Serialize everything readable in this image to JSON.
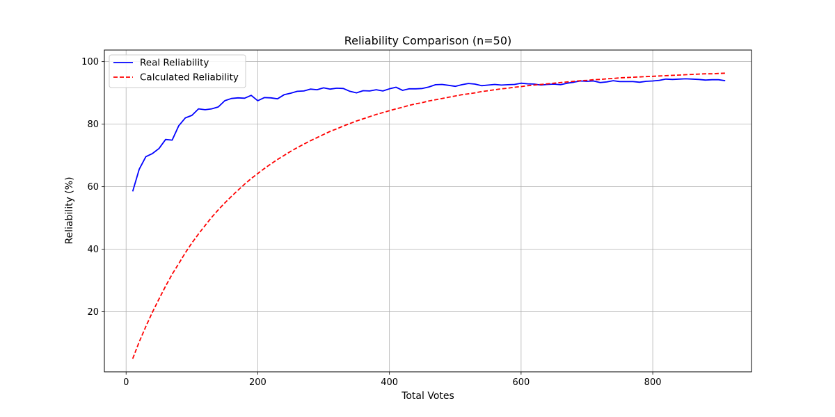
{
  "chart_data": {
    "type": "line",
    "title": "Reliability Comparison (n=50)",
    "xlabel": "Total Votes",
    "ylabel": "Reliability (%)",
    "xlim": [
      -33,
      950
    ],
    "ylim": [
      0.8,
      103.7
    ],
    "xticks": [
      0,
      200,
      400,
      600,
      800
    ],
    "yticks": [
      20,
      40,
      60,
      80,
      100
    ],
    "grid": true,
    "legend_position": "top-left",
    "x": [
      10,
      20,
      30,
      40,
      50,
      60,
      70,
      80,
      90,
      100,
      110,
      120,
      130,
      140,
      150,
      160,
      170,
      180,
      190,
      200,
      210,
      220,
      230,
      240,
      250,
      260,
      270,
      280,
      290,
      300,
      310,
      320,
      330,
      340,
      350,
      360,
      370,
      380,
      390,
      400,
      410,
      420,
      430,
      440,
      450,
      460,
      470,
      480,
      490,
      500,
      510,
      520,
      530,
      540,
      550,
      560,
      570,
      580,
      590,
      600,
      610,
      620,
      630,
      640,
      650,
      660,
      670,
      680,
      690,
      700,
      710,
      720,
      730,
      740,
      750,
      760,
      770,
      780,
      790,
      800,
      810,
      820,
      830,
      840,
      850,
      860,
      870,
      880,
      890,
      900,
      910
    ],
    "series": [
      {
        "name": "Real Reliability",
        "color": "#0000ff",
        "style": "solid",
        "values": [
          58.5,
          65.6,
          69.6,
          70.6,
          72.2,
          75.1,
          74.9,
          79.5,
          82.0,
          82.8,
          84.9,
          84.6,
          84.9,
          85.5,
          87.5,
          88.2,
          88.4,
          88.3,
          89.2,
          87.5,
          88.5,
          88.4,
          88.1,
          89.4,
          89.9,
          90.5,
          90.6,
          91.2,
          91.0,
          91.6,
          91.2,
          91.5,
          91.4,
          90.5,
          90.0,
          90.7,
          90.6,
          91.0,
          90.6,
          91.3,
          91.8,
          90.8,
          91.3,
          91.3,
          91.4,
          91.9,
          92.6,
          92.7,
          92.4,
          92.1,
          92.6,
          93.0,
          92.8,
          92.3,
          92.5,
          92.7,
          92.5,
          92.6,
          92.7,
          93.1,
          92.9,
          92.8,
          92.5,
          92.7,
          92.8,
          92.6,
          93.1,
          93.4,
          93.8,
          93.7,
          93.8,
          93.3,
          93.5,
          93.9,
          93.6,
          93.6,
          93.6,
          93.4,
          93.7,
          93.8,
          94.0,
          94.4,
          94.3,
          94.4,
          94.5,
          94.4,
          94.3,
          94.1,
          94.2,
          94.2,
          93.9
        ]
      },
      {
        "name": "Calculated Reliability",
        "color": "#ff0000",
        "style": "dashed",
        "values": [
          5.0,
          10.4,
          15.3,
          19.9,
          24.1,
          28.2,
          32.0,
          35.4,
          38.9,
          42.0,
          44.9,
          47.6,
          50.2,
          52.6,
          54.8,
          56.9,
          58.9,
          60.8,
          62.6,
          64.2,
          65.8,
          67.3,
          68.7,
          70.0,
          71.3,
          72.5,
          73.6,
          74.7,
          75.7,
          76.7,
          77.7,
          78.5,
          79.4,
          80.2,
          81.0,
          81.7,
          82.4,
          83.1,
          83.7,
          84.3,
          84.9,
          85.4,
          86.0,
          86.5,
          86.9,
          87.4,
          87.8,
          88.2,
          88.6,
          89.0,
          89.4,
          89.7,
          90.0,
          90.4,
          90.7,
          91.0,
          91.3,
          91.5,
          91.8,
          92.0,
          92.3,
          92.5,
          92.7,
          92.9,
          93.1,
          93.3,
          93.5,
          93.7,
          93.9,
          94.0,
          94.2,
          94.3,
          94.5,
          94.6,
          94.8,
          94.9,
          95.0,
          95.1,
          95.2,
          95.3,
          95.4,
          95.5,
          95.6,
          95.7,
          95.8,
          95.9,
          96.0,
          96.1,
          96.1,
          96.2,
          96.3
        ]
      }
    ]
  }
}
